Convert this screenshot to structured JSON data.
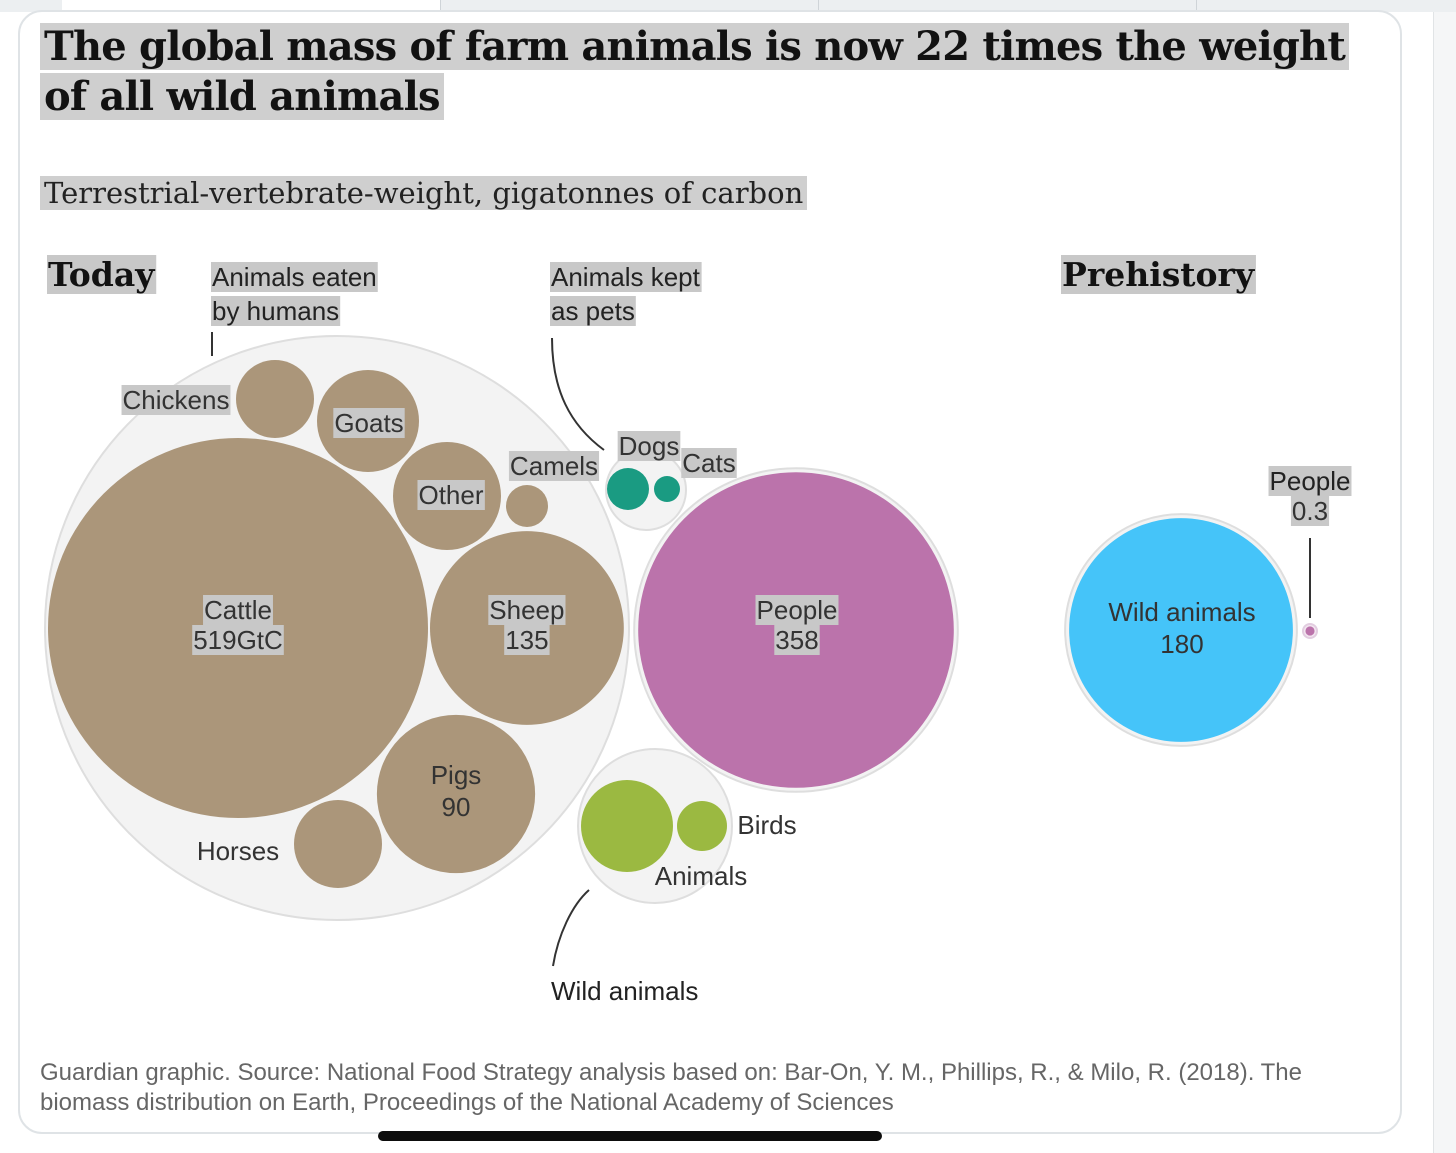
{
  "title": "The global mass of farm animals is now 22 times the weight of all wild animals",
  "subtitle": "Terrestrial-vertebrate-weight, gigatonnes of carbon",
  "source": "Guardian graphic. Source: National Food Strategy analysis based on: Bar-On, Y. M., Phillips, R., & Milo, R. (2018). The biomass distribution on Earth, Proceedings of the National Academy of Sciences",
  "colors": {
    "farm": "#ab967a",
    "pets": "#1a9b82",
    "people": "#bb73ab",
    "wild_today": "#9bb941",
    "wild_prehistory": "#45c4f9",
    "group_fill": "#f3f3f3",
    "group_stroke": "#dedede"
  },
  "chart_data": {
    "type": "bubble",
    "unit": "GtC",
    "sections": [
      {
        "label": "Today",
        "groups": [
          {
            "label": "Animals eaten by humans",
            "label_lines": [
              "Animals eaten",
              "by humans"
            ],
            "items": [
              {
                "name": "Cattle",
                "value": 519,
                "value_label": "519GtC",
                "color": "farm"
              },
              {
                "name": "Sheep",
                "value": 135,
                "value_label": "135",
                "color": "farm"
              },
              {
                "name": "Pigs",
                "value": 90,
                "value_label": "90",
                "color": "farm"
              },
              {
                "name": "Goats",
                "value": null,
                "value_label": "",
                "color": "farm"
              },
              {
                "name": "Other",
                "value": null,
                "value_label": "",
                "color": "farm"
              },
              {
                "name": "Horses",
                "value": null,
                "value_label": "",
                "color": "farm"
              },
              {
                "name": "Chickens",
                "value": null,
                "value_label": "",
                "color": "farm"
              },
              {
                "name": "Camels",
                "value": null,
                "value_label": "",
                "color": "farm"
              }
            ]
          },
          {
            "label": "Animals kept as pets",
            "label_lines": [
              "Animals kept",
              "as pets"
            ],
            "items": [
              {
                "name": "Dogs",
                "value": null,
                "value_label": "",
                "color": "pets"
              },
              {
                "name": "Cats",
                "value": null,
                "value_label": "",
                "color": "pets"
              }
            ]
          },
          {
            "label": "People",
            "items": [
              {
                "name": "People",
                "value": 358,
                "value_label": "358",
                "color": "people"
              }
            ]
          },
          {
            "label": "Wild animals",
            "items": [
              {
                "name": "Animals",
                "value": null,
                "value_label": "",
                "color": "wild_today"
              },
              {
                "name": "Birds",
                "value": null,
                "value_label": "",
                "color": "wild_today"
              }
            ]
          }
        ]
      },
      {
        "label": "Prehistory",
        "groups": [
          {
            "label": "Wild animals",
            "items": [
              {
                "name": "Wild animals",
                "value": 180,
                "value_label": "180",
                "color": "wild_prehistory"
              }
            ]
          },
          {
            "label": "People",
            "items": [
              {
                "name": "People",
                "value": 0.3,
                "value_label": "0.3",
                "color": "people"
              }
            ]
          }
        ]
      }
    ]
  }
}
